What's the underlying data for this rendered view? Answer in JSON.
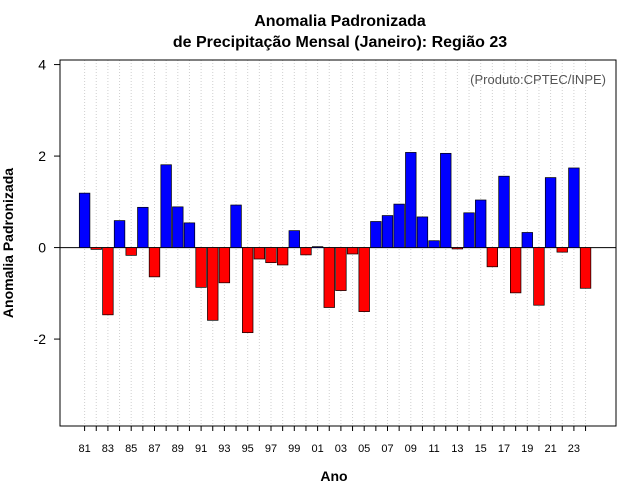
{
  "chart_data": {
    "type": "bar",
    "title": "Anomalia Padronizada",
    "subtitle": "de Precipitação Mensal (Janeiro): Região 23",
    "xlabel": "Ano",
    "ylabel": "Anomalia Padronizada",
    "credit": "(Produto:CPTEC/INPE)",
    "ylim": [
      -3.9,
      4.1
    ],
    "yticks": [
      4,
      2,
      0,
      -2
    ],
    "ytick_labels": [
      "4",
      "2",
      "0",
      "-2"
    ],
    "grid": "vertical-dotted",
    "positive_color": "#0000ff",
    "negative_color": "#ff0000",
    "categories": [
      "1981",
      "1982",
      "1983",
      "1984",
      "1985",
      "1986",
      "1987",
      "1988",
      "1989",
      "1990",
      "1991",
      "1992",
      "1993",
      "1994",
      "1995",
      "1996",
      "1997",
      "1998",
      "1999",
      "2000",
      "2001",
      "2002",
      "2003",
      "2004",
      "2005",
      "2006",
      "2007",
      "2008",
      "2009",
      "2010",
      "2011",
      "2012",
      "2013",
      "2014",
      "2015",
      "2016",
      "2017",
      "2018",
      "2019",
      "2020",
      "2021",
      "2022",
      "2023",
      "2024"
    ],
    "xtick_labels": [
      "81",
      "83",
      "85",
      "87",
      "89",
      "91",
      "93",
      "95",
      "97",
      "99",
      "01",
      "03",
      "05",
      "07",
      "09",
      "11",
      "13",
      "15",
      "17",
      "19",
      "21",
      "23"
    ],
    "values": [
      1.19,
      -0.04,
      -1.47,
      0.59,
      -0.17,
      0.88,
      -0.64,
      1.81,
      0.89,
      0.54,
      -0.87,
      -1.59,
      -0.77,
      0.93,
      -1.86,
      -0.25,
      -0.33,
      -0.38,
      0.37,
      -0.16,
      0.02,
      -1.31,
      -0.94,
      -0.14,
      -1.4,
      0.57,
      0.7,
      0.95,
      2.08,
      0.67,
      0.15,
      2.06,
      -0.03,
      0.76,
      1.04,
      -0.42,
      1.56,
      -0.99,
      0.33,
      -1.26,
      1.53,
      -0.1,
      1.74,
      -0.89
    ]
  }
}
